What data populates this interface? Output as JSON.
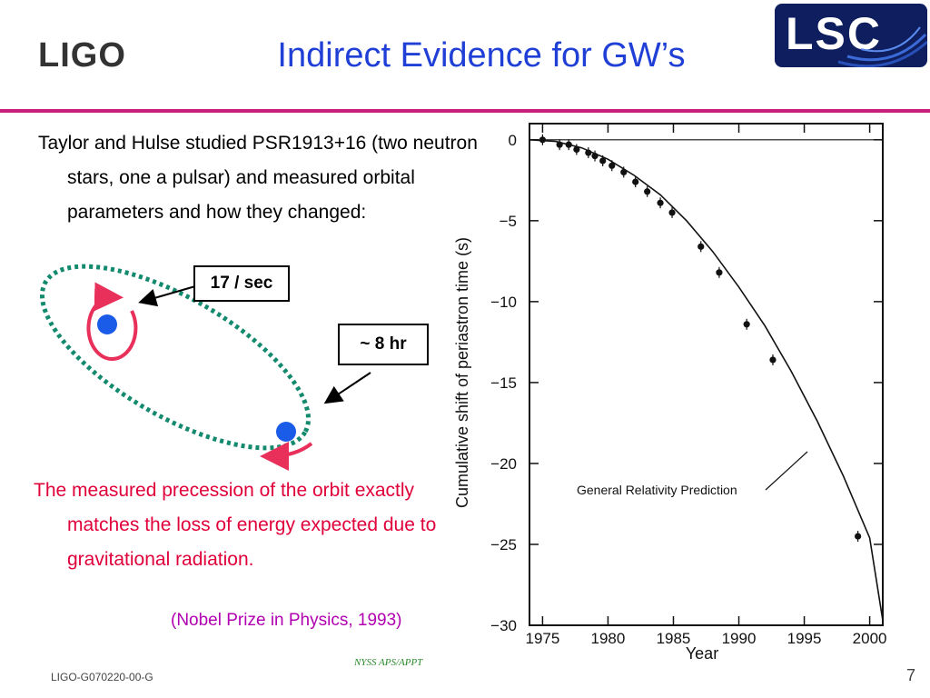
{
  "header": {
    "logo_left": "LIGO",
    "title": "Indirect Evidence for GW’s",
    "logo_right": "LSC"
  },
  "intro": "Taylor and Hulse studied PSR1913+16 (two neutron stars, one a pulsar) and measured orbital  parameters and how they changed:",
  "diagram": {
    "callout_rate": "17 / sec",
    "callout_period": "~ 8 hr",
    "orbit_color": "#138a6e",
    "star_color": "#1a5ce8",
    "arrow_color": "#e8305a"
  },
  "conclusion": "The measured precession of the orbit exactly matches the loss of energy expected due to gravitational radiation.",
  "nobel": "(Nobel Prize in Physics, 1993)",
  "footer": {
    "conference": "NYSS APS/APPT",
    "doc_id": "LIGO-G070220-00-G",
    "page": "7"
  },
  "chart_data": {
    "type": "line",
    "xlabel": "Year",
    "ylabel": "Cumulative shift of periastron time (s)",
    "xlim": [
      1974,
      2001
    ],
    "ylim": [
      -30,
      1
    ],
    "x_ticks": [
      1975,
      1980,
      1985,
      1990,
      1995,
      2000
    ],
    "y_ticks": [
      0,
      -5,
      -10,
      -15,
      -20,
      -25,
      -30
    ],
    "annotation": "General Relativity Prediction",
    "prediction_curve": {
      "x": [
        1974,
        1976,
        1978,
        1980,
        1982,
        1984,
        1986,
        1988,
        1990,
        1992,
        1994,
        1996,
        1998,
        2000,
        2001
      ],
      "y": [
        0.0,
        -0.1,
        -0.5,
        -1.2,
        -2.2,
        -3.4,
        -5.0,
        -6.9,
        -9.1,
        -11.5,
        -14.3,
        -17.4,
        -20.8,
        -24.6,
        -29.7
      ]
    },
    "measurements": {
      "x": [
        1975.0,
        1976.3,
        1977.0,
        1977.6,
        1978.5,
        1979.0,
        1979.6,
        1980.3,
        1981.2,
        1982.1,
        1983.0,
        1984.0,
        1984.9,
        1987.1,
        1988.5,
        1990.6,
        1992.6,
        1999.1
      ],
      "y": [
        0.0,
        -0.3,
        -0.3,
        -0.6,
        -0.8,
        -1.0,
        -1.3,
        -1.6,
        -2.0,
        -2.6,
        -3.2,
        -3.9,
        -4.5,
        -6.6,
        -8.2,
        -11.4,
        -13.6,
        -24.5
      ]
    },
    "zero_line": 0
  }
}
